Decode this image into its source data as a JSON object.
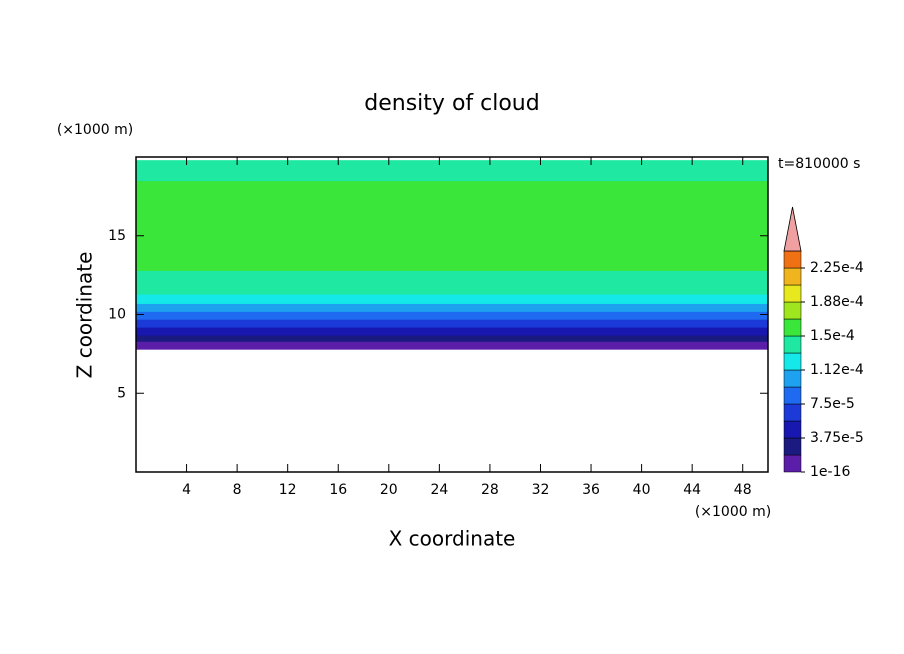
{
  "chart_data": {
    "type": "contour",
    "title": "density of cloud",
    "x_label": "X coordinate",
    "y_label": "Z coordinate",
    "x_unit": "(×1000 m)",
    "y_unit": "(×1000 m)",
    "time_label": "t=810000 s",
    "xlim": [
      0,
      50
    ],
    "xticks": [
      4,
      8,
      12,
      16,
      20,
      24,
      28,
      32,
      36,
      40,
      44,
      48
    ],
    "ylim": [
      0,
      20
    ],
    "yticks": [
      5,
      10,
      15
    ],
    "profile": {
      "z_bins": [
        7.8,
        8.3,
        8.7,
        9.2,
        9.7,
        10.2,
        10.7,
        11.3,
        12.8,
        18.5,
        19.8
      ],
      "values": [
        1e-05,
        2.8e-05,
        4.6e-05,
        6.5e-05,
        8.4e-05,
        0.000103,
        0.00012,
        0.00014,
        0.00016,
        0.00014
      ]
    },
    "colorbar": {
      "levels": [
        1e-16,
        1.875e-05,
        3.75e-05,
        5.625e-05,
        7.5e-05,
        9.375e-05,
        0.0001125,
        0.00013125,
        0.00015,
        0.00016875,
        0.0001875,
        0.00020625,
        0.000225,
        0.00024375
      ],
      "colors": [
        "#5a1ea8",
        "#1a1a80",
        "#1818b0",
        "#1c3ad8",
        "#1e6af0",
        "#1ea2f0",
        "#14e8e8",
        "#1ee8a2",
        "#3ae63a",
        "#a0e61e",
        "#e8e81e",
        "#f0b41e",
        "#f07014"
      ],
      "extend_color": "#f0a0a0",
      "ticks": [
        {
          "value": 1e-16,
          "label": "1e-16"
        },
        {
          "value": 3.75e-05,
          "label": "3.75e-5"
        },
        {
          "value": 7.5e-05,
          "label": "7.5e-5"
        },
        {
          "value": 0.0001125,
          "label": "1.12e-4"
        },
        {
          "value": 0.00015,
          "label": "1.5e-4"
        },
        {
          "value": 0.0001875,
          "label": "1.88e-4"
        },
        {
          "value": 0.000225,
          "label": "2.25e-4"
        }
      ]
    }
  }
}
